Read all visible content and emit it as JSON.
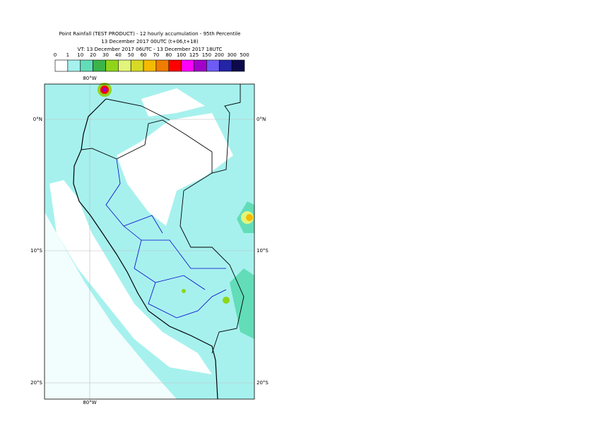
{
  "title": [
    "Point Rainfall (TEST PRODUCT) - 12 hourly accumulation - 95th Percentile",
    "13 December 2017 00UTC (t+06,t+18)",
    "VT: 13 December 2017 06UTC - 13 December 2017 18UTC"
  ],
  "legend": {
    "ticks": [
      "0",
      "1",
      "10",
      "20",
      "30",
      "40",
      "50",
      "60",
      "70",
      "80",
      "100",
      "125",
      "150",
      "200",
      "300",
      "500"
    ],
    "colors": [
      "#ffffff",
      "#a6f1ee",
      "#62ddb8",
      "#3cb44a",
      "#8ed51a",
      "#e2f57a",
      "#d6d925",
      "#f5bb00",
      "#f07c00",
      "#ff0000",
      "#ff00ff",
      "#a300cc",
      "#6c5cf5",
      "#2424a6",
      "#0c0a4c"
    ]
  },
  "map": {
    "lon_labels": [
      "80°W",
      "80°W"
    ],
    "lat_labels": [
      "0°N",
      "10°S",
      "20°S"
    ]
  }
}
